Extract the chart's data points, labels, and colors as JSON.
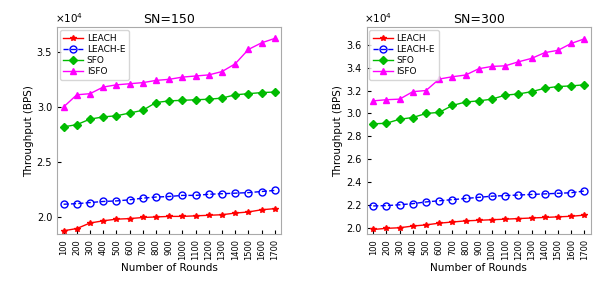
{
  "rounds": [
    100,
    200,
    300,
    400,
    500,
    600,
    700,
    800,
    900,
    1000,
    1100,
    1200,
    1300,
    1400,
    1500,
    1600,
    1700
  ],
  "left": {
    "title": "SN=150",
    "LEACH": [
      18800,
      19000,
      19500,
      19700,
      19850,
      19900,
      20000,
      20050,
      20100,
      20100,
      20150,
      20200,
      20250,
      20400,
      20500,
      20700,
      20800
    ],
    "LEACH_E": [
      21200,
      21250,
      21350,
      21450,
      21500,
      21600,
      21750,
      21850,
      21900,
      22000,
      22000,
      22100,
      22150,
      22200,
      22250,
      22350,
      22450
    ],
    "SFO": [
      28200,
      28400,
      28900,
      29100,
      29200,
      29450,
      29700,
      30400,
      30550,
      30600,
      30650,
      30700,
      30800,
      31100,
      31200,
      31300,
      31350
    ],
    "ISFO": [
      30000,
      31100,
      31200,
      31800,
      32000,
      32100,
      32200,
      32400,
      32500,
      32700,
      32800,
      32900,
      33200,
      33900,
      35200,
      35800,
      36200
    ]
  },
  "right": {
    "title": "SN=300",
    "LEACH": [
      19900,
      20000,
      20050,
      20200,
      20300,
      20450,
      20550,
      20650,
      20700,
      20750,
      20800,
      20850,
      20900,
      20950,
      21000,
      21050,
      21150
    ],
    "LEACH_E": [
      21950,
      21980,
      22050,
      22150,
      22300,
      22400,
      22500,
      22600,
      22700,
      22800,
      22850,
      22900,
      22950,
      23000,
      23050,
      23100,
      23250
    ],
    "SFO": [
      29100,
      29150,
      29500,
      29650,
      30000,
      30100,
      30700,
      31000,
      31100,
      31250,
      31600,
      31700,
      31900,
      32200,
      32350,
      32400,
      32500
    ],
    "ISFO": [
      31100,
      31200,
      31250,
      31900,
      32000,
      33000,
      33200,
      33350,
      33900,
      34100,
      34150,
      34500,
      34800,
      35300,
      35500,
      36100,
      36500
    ]
  },
  "colors": {
    "LEACH": "#ff0000",
    "LEACH_E": "#0000ff",
    "SFO": "#00bb00",
    "ISFO": "#ff00ff"
  },
  "linestyles": {
    "LEACH": "-",
    "LEACH_E": "--",
    "SFO": "-",
    "ISFO": "-"
  },
  "markers": {
    "LEACH": "*",
    "LEACH_E": "o",
    "SFO": "D",
    "ISFO": "^"
  },
  "markersizes": {
    "LEACH": 4,
    "LEACH_E": 5,
    "SFO": 4,
    "ISFO": 5
  },
  "labels": {
    "LEACH": "LEACH",
    "LEACH_E": "LEACH-E",
    "SFO": "SFO",
    "ISFO": "ISFO"
  },
  "ylim_left": [
    18500,
    37200
  ],
  "ylim_right": [
    19500,
    37500
  ],
  "yticks_left": [
    20000,
    25000,
    30000,
    35000
  ],
  "yticks_right": [
    20000,
    22000,
    24000,
    26000,
    28000,
    30000,
    32000,
    34000,
    36000
  ],
  "xlabel": "Number of Rounds",
  "ylabel": "Throughput (BPS)",
  "scale": 10000
}
